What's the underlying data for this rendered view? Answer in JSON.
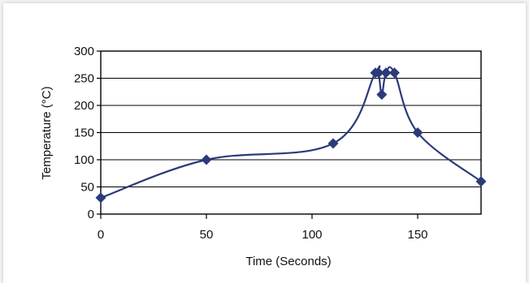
{
  "chart_data": {
    "type": "line",
    "xlabel": "Time (Seconds)",
    "ylabel": "Temperature (°C)",
    "xlim": [
      0,
      180
    ],
    "ylim": [
      0,
      300
    ],
    "x_ticks": [
      0,
      50,
      100,
      150
    ],
    "y_ticks": [
      0,
      50,
      100,
      150,
      200,
      250,
      300
    ],
    "grid": "horizontal",
    "smooth": true,
    "marker": "diamond",
    "series": [
      {
        "color": "#2b3a7a",
        "points": [
          {
            "x": 0,
            "y": 30
          },
          {
            "x": 50,
            "y": 100
          },
          {
            "x": 110,
            "y": 130
          },
          {
            "x": 130,
            "y": 260
          },
          {
            "x": 131.5,
            "y": 260
          },
          {
            "x": 133,
            "y": 220
          },
          {
            "x": 135,
            "y": 260
          },
          {
            "x": 139,
            "y": 260
          },
          {
            "x": 150,
            "y": 150
          },
          {
            "x": 180,
            "y": 60
          }
        ]
      }
    ]
  }
}
